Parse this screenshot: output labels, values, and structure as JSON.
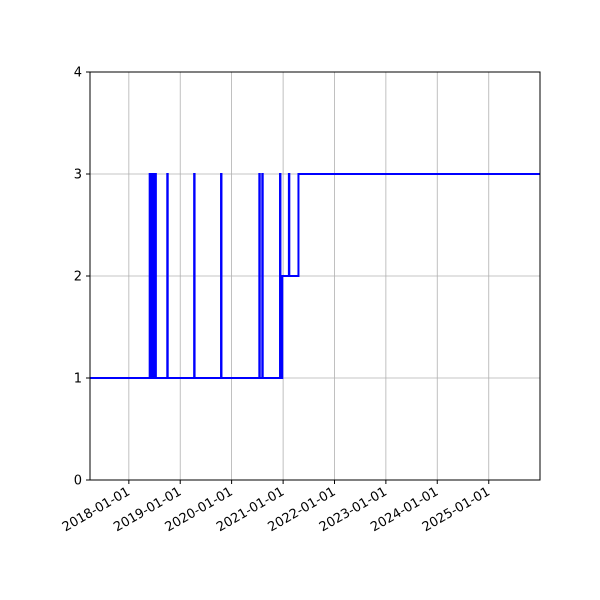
{
  "chart_data": {
    "type": "line",
    "title": "",
    "xlabel": "",
    "ylabel": "",
    "x_axis": "date",
    "xlim": [
      "2017-03-31",
      "2025-12-31"
    ],
    "ylim": [
      0,
      4
    ],
    "grid": true,
    "legend": "none",
    "line_color": "#0000ff",
    "y_ticks": [
      {
        "value": 0,
        "label": "0"
      },
      {
        "value": 1,
        "label": "1"
      },
      {
        "value": 2,
        "label": "2"
      },
      {
        "value": 3,
        "label": "3"
      },
      {
        "value": 4,
        "label": "4"
      }
    ],
    "x_ticks": [
      {
        "value": "2018-01-01",
        "label": "2018-01-01"
      },
      {
        "value": "2019-01-01",
        "label": "2019-01-01"
      },
      {
        "value": "2020-01-01",
        "label": "2020-01-01"
      },
      {
        "value": "2021-01-01",
        "label": "2021-01-01"
      },
      {
        "value": "2022-01-01",
        "label": "2022-01-01"
      },
      {
        "value": "2023-01-01",
        "label": "2023-01-01"
      },
      {
        "value": "2024-01-01",
        "label": "2024-01-01"
      },
      {
        "value": "2025-01-01",
        "label": "2025-01-01"
      }
    ],
    "series": [
      {
        "step": "post",
        "points": [
          {
            "x": "2017-03-31",
            "y": 1
          },
          {
            "x": "2018-05-29",
            "y": 3
          },
          {
            "x": "2018-06-01",
            "y": 1
          },
          {
            "x": "2018-06-05",
            "y": 3
          },
          {
            "x": "2018-06-08",
            "y": 1
          },
          {
            "x": "2018-06-12",
            "y": 3
          },
          {
            "x": "2018-06-15",
            "y": 1
          },
          {
            "x": "2018-06-19",
            "y": 3
          },
          {
            "x": "2018-06-22",
            "y": 1
          },
          {
            "x": "2018-06-26",
            "y": 3
          },
          {
            "x": "2018-07-02",
            "y": 1
          },
          {
            "x": "2018-07-06",
            "y": 3
          },
          {
            "x": "2018-07-12",
            "y": 1
          },
          {
            "x": "2018-10-01",
            "y": 3
          },
          {
            "x": "2018-10-04",
            "y": 1
          },
          {
            "x": "2019-04-10",
            "y": 3
          },
          {
            "x": "2019-04-13",
            "y": 1
          },
          {
            "x": "2019-10-18",
            "y": 3
          },
          {
            "x": "2019-10-21",
            "y": 1
          },
          {
            "x": "2020-07-16",
            "y": 3
          },
          {
            "x": "2020-07-19",
            "y": 1
          },
          {
            "x": "2020-08-06",
            "y": 3
          },
          {
            "x": "2020-08-09",
            "y": 1
          },
          {
            "x": "2020-12-10",
            "y": 3
          },
          {
            "x": "2020-12-13",
            "y": 1
          },
          {
            "x": "2020-12-26",
            "y": 2
          },
          {
            "x": "2021-02-11",
            "y": 3
          },
          {
            "x": "2021-02-14",
            "y": 2
          },
          {
            "x": "2021-04-20",
            "y": 3
          },
          {
            "x": "2025-12-31",
            "y": 3
          }
        ]
      }
    ]
  }
}
